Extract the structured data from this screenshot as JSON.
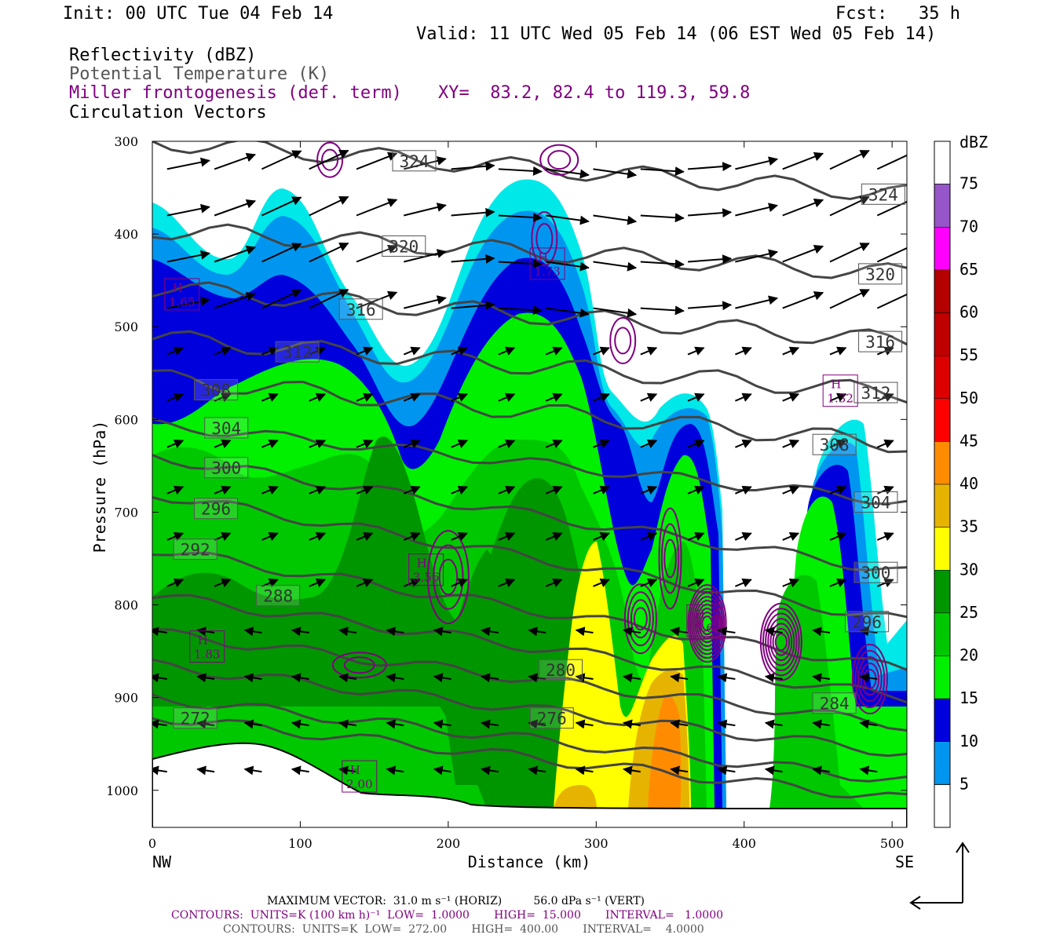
{
  "header": {
    "init": "Init: 00 UTC Tue 04 Feb 14",
    "fcst": "Fcst:   35 h",
    "valid": "Valid: 11 UTC Wed 05 Feb 14 (06 EST Wed 05 Feb 14)"
  },
  "fields": {
    "reflectivity": "Reflectivity (dBZ)",
    "theta": "Potential Temperature (K)",
    "frontogenesis": "Miller frontogenesis (def. term)",
    "xy": "XY=  83.2, 82.4 to 119.3, 59.8",
    "vectors": "Circulation Vectors"
  },
  "footer": {
    "max_vector": "MAXIMUM VECTOR:  31.0 m s⁻¹ (HORIZ)         56.0 dPa s⁻¹ (VERT)",
    "contours_fronto": "CONTOURS:  UNITS=K (100 km h)⁻¹  LOW=  1.0000       HIGH=  15.000       INTERVAL=   1.0000",
    "contours_theta": "CONTOURS:  UNITS=K  LOW=  272.00       HIGH=  400.00       INTERVAL=    4.0000"
  },
  "colors": {
    "c5": "#00e8e8",
    "c10": "#0096f0",
    "c15": "#0000dc",
    "c20": "#00f000",
    "c25": "#00c800",
    "c30": "#009600",
    "c35": "#ffff00",
    "c40": "#e6b400",
    "c45": "#ff8c00",
    "c50": "#ff0000",
    "c55": "#dc0000",
    "c60": "#c00000",
    "c65": "#b40000",
    "c70": "#ff00ff",
    "c75": "#9655c8",
    "theta": "#444444",
    "fronto": "#800080",
    "vector": "#000000"
  },
  "chart_data": {
    "type": "cross-section",
    "xlabel": "Distance (km)",
    "ylabel": "Pressure (hPa)",
    "xlim": [
      0,
      510
    ],
    "ylim": [
      300,
      1040
    ],
    "x_ticks": [
      0,
      100,
      200,
      300,
      400,
      500
    ],
    "x_tick_labels": [
      "0",
      "100",
      "200",
      "300",
      "400",
      "500"
    ],
    "y_ticks": [
      300,
      400,
      500,
      600,
      700,
      800,
      900,
      1000
    ],
    "y_tick_labels": [
      "300",
      "400",
      "500",
      "600",
      "700",
      "800",
      "900",
      "1000"
    ],
    "left_end_label": "NW",
    "right_end_label": "SE",
    "colorbar": {
      "unit": "dBZ",
      "levels": [
        5,
        10,
        15,
        20,
        25,
        30,
        35,
        40,
        45,
        50,
        55,
        60,
        65,
        70,
        75
      ],
      "labels": [
        "5",
        "10",
        "15",
        "20",
        "25",
        "30",
        "35",
        "40",
        "45",
        "50",
        "55",
        "60",
        "65",
        "70",
        "75"
      ]
    },
    "theta_labels": [
      {
        "text": "324",
        "x": 177,
        "p": 321
      },
      {
        "text": "324",
        "x": 494,
        "p": 357
      },
      {
        "text": "320",
        "x": 170,
        "p": 413
      },
      {
        "text": "320",
        "x": 492,
        "p": 443
      },
      {
        "text": "316",
        "x": 141,
        "p": 481
      },
      {
        "text": "316",
        "x": 492,
        "p": 516
      },
      {
        "text": "312",
        "x": 98,
        "p": 527
      },
      {
        "text": "312",
        "x": 489,
        "p": 571
      },
      {
        "text": "308",
        "x": 43,
        "p": 568
      },
      {
        "text": "308",
        "x": 461,
        "p": 627
      },
      {
        "text": "304",
        "x": 50,
        "p": 609
      },
      {
        "text": "304",
        "x": 489,
        "p": 689
      },
      {
        "text": "300",
        "x": 50,
        "p": 652
      },
      {
        "text": "300",
        "x": 489,
        "p": 765
      },
      {
        "text": "296",
        "x": 43,
        "p": 696
      },
      {
        "text": "296",
        "x": 483,
        "p": 818
      },
      {
        "text": "292",
        "x": 29,
        "p": 740
      },
      {
        "text": "288",
        "x": 85,
        "p": 790
      },
      {
        "text": "280",
        "x": 276,
        "p": 870
      },
      {
        "text": "284",
        "x": 461,
        "p": 906
      },
      {
        "text": "276",
        "x": 270,
        "p": 922
      },
      {
        "text": "272",
        "x": 29,
        "p": 922
      }
    ],
    "highs": [
      {
        "label": "H",
        "value": "1.65",
        "x": 20,
        "p": 465
      },
      {
        "label": "H",
        "value": "1.73",
        "x": 267,
        "p": 432
      },
      {
        "label": "H",
        "value": "1.32",
        "x": 465,
        "p": 569
      },
      {
        "label": "H",
        "value": "3.56",
        "x": 185,
        "p": 762
      },
      {
        "label": "H",
        "value": "1.83",
        "x": 37,
        "p": 845
      },
      {
        "label": "H",
        "value": "5.6",
        "x": 373,
        "p": 817
      },
      {
        "label": "H",
        "value": "2.00",
        "x": 140,
        "p": 985
      }
    ]
  }
}
